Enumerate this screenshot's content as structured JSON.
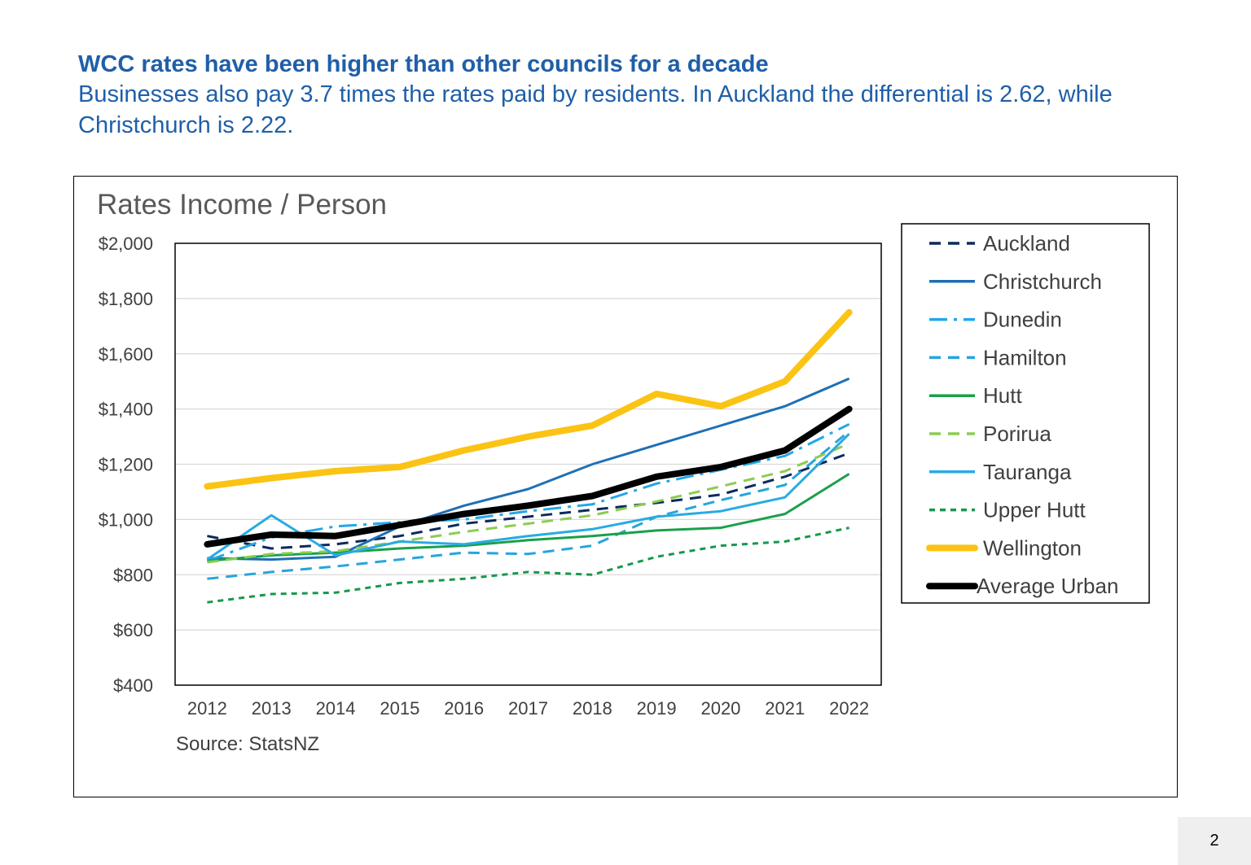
{
  "slide": {
    "headline": "WCC rates have been higher than other councils for a decade",
    "subline": "Businesses also pay 3.7 times the rates paid by residents. In Auckland the differential is 2.62, while Christchurch is 2.22.",
    "page_number": "2"
  },
  "chart_data": {
    "type": "line",
    "title": "Rates Income / Person",
    "source": "Source: StatsNZ",
    "xlabel": "",
    "ylabel": "",
    "x": [
      "2012",
      "2013",
      "2014",
      "2015",
      "2016",
      "2017",
      "2018",
      "2019",
      "2020",
      "2021",
      "2022"
    ],
    "ylim": [
      400,
      2000
    ],
    "yticks": [
      400,
      600,
      800,
      1000,
      1200,
      1400,
      1600,
      1800,
      2000
    ],
    "ytick_labels": [
      "$400",
      "$600",
      "$800",
      "$1,000",
      "$1,200",
      "$1,400",
      "$1,600",
      "$1,800",
      "$2,000"
    ],
    "grid": "horizontal",
    "legend_position": "right",
    "series": [
      {
        "name": "Auckland",
        "color": "#0d2a5c",
        "style": "dash",
        "values": [
          940,
          895,
          910,
          940,
          985,
          1010,
          1035,
          1060,
          1090,
          1155,
          1240
        ]
      },
      {
        "name": "Christchurch",
        "color": "#1f6fb5",
        "style": "solid",
        "values": [
          860,
          855,
          865,
          975,
          1050,
          1110,
          1200,
          1270,
          1340,
          1410,
          1510
        ]
      },
      {
        "name": "Dunedin",
        "color": "#22a7e8",
        "style": "dashdot",
        "values": [
          850,
          935,
          975,
          990,
          1000,
          1030,
          1055,
          1130,
          1180,
          1230,
          1345
        ]
      },
      {
        "name": "Hamilton",
        "color": "#27a4dd",
        "style": "dash",
        "values": [
          785,
          810,
          830,
          855,
          880,
          875,
          905,
          1010,
          1070,
          1125,
          1320
        ]
      },
      {
        "name": "Hutt",
        "color": "#1aa04a",
        "style": "solid",
        "values": [
          850,
          870,
          880,
          895,
          905,
          925,
          940,
          960,
          970,
          1020,
          1165
        ]
      },
      {
        "name": "Porirua",
        "color": "#8ccc50",
        "style": "dash",
        "values": [
          845,
          875,
          885,
          920,
          955,
          985,
          1015,
          1065,
          1120,
          1175,
          1275
        ]
      },
      {
        "name": "Tauranga",
        "color": "#29abe2",
        "style": "solid",
        "values": [
          855,
          1015,
          870,
          920,
          910,
          940,
          965,
          1010,
          1030,
          1080,
          1310
        ]
      },
      {
        "name": "Upper Hutt",
        "color": "#15994a",
        "style": "dot",
        "values": [
          700,
          730,
          735,
          770,
          785,
          810,
          800,
          865,
          905,
          920,
          970
        ]
      },
      {
        "name": "Wellington",
        "color": "#fbc313",
        "style": "thick",
        "values": [
          1120,
          1150,
          1175,
          1190,
          1250,
          1300,
          1340,
          1455,
          1410,
          1500,
          1750
        ]
      },
      {
        "name": "Average Urban",
        "color": "#000000",
        "style": "thick",
        "values": [
          910,
          945,
          940,
          980,
          1020,
          1050,
          1085,
          1155,
          1190,
          1250,
          1400
        ]
      }
    ]
  }
}
